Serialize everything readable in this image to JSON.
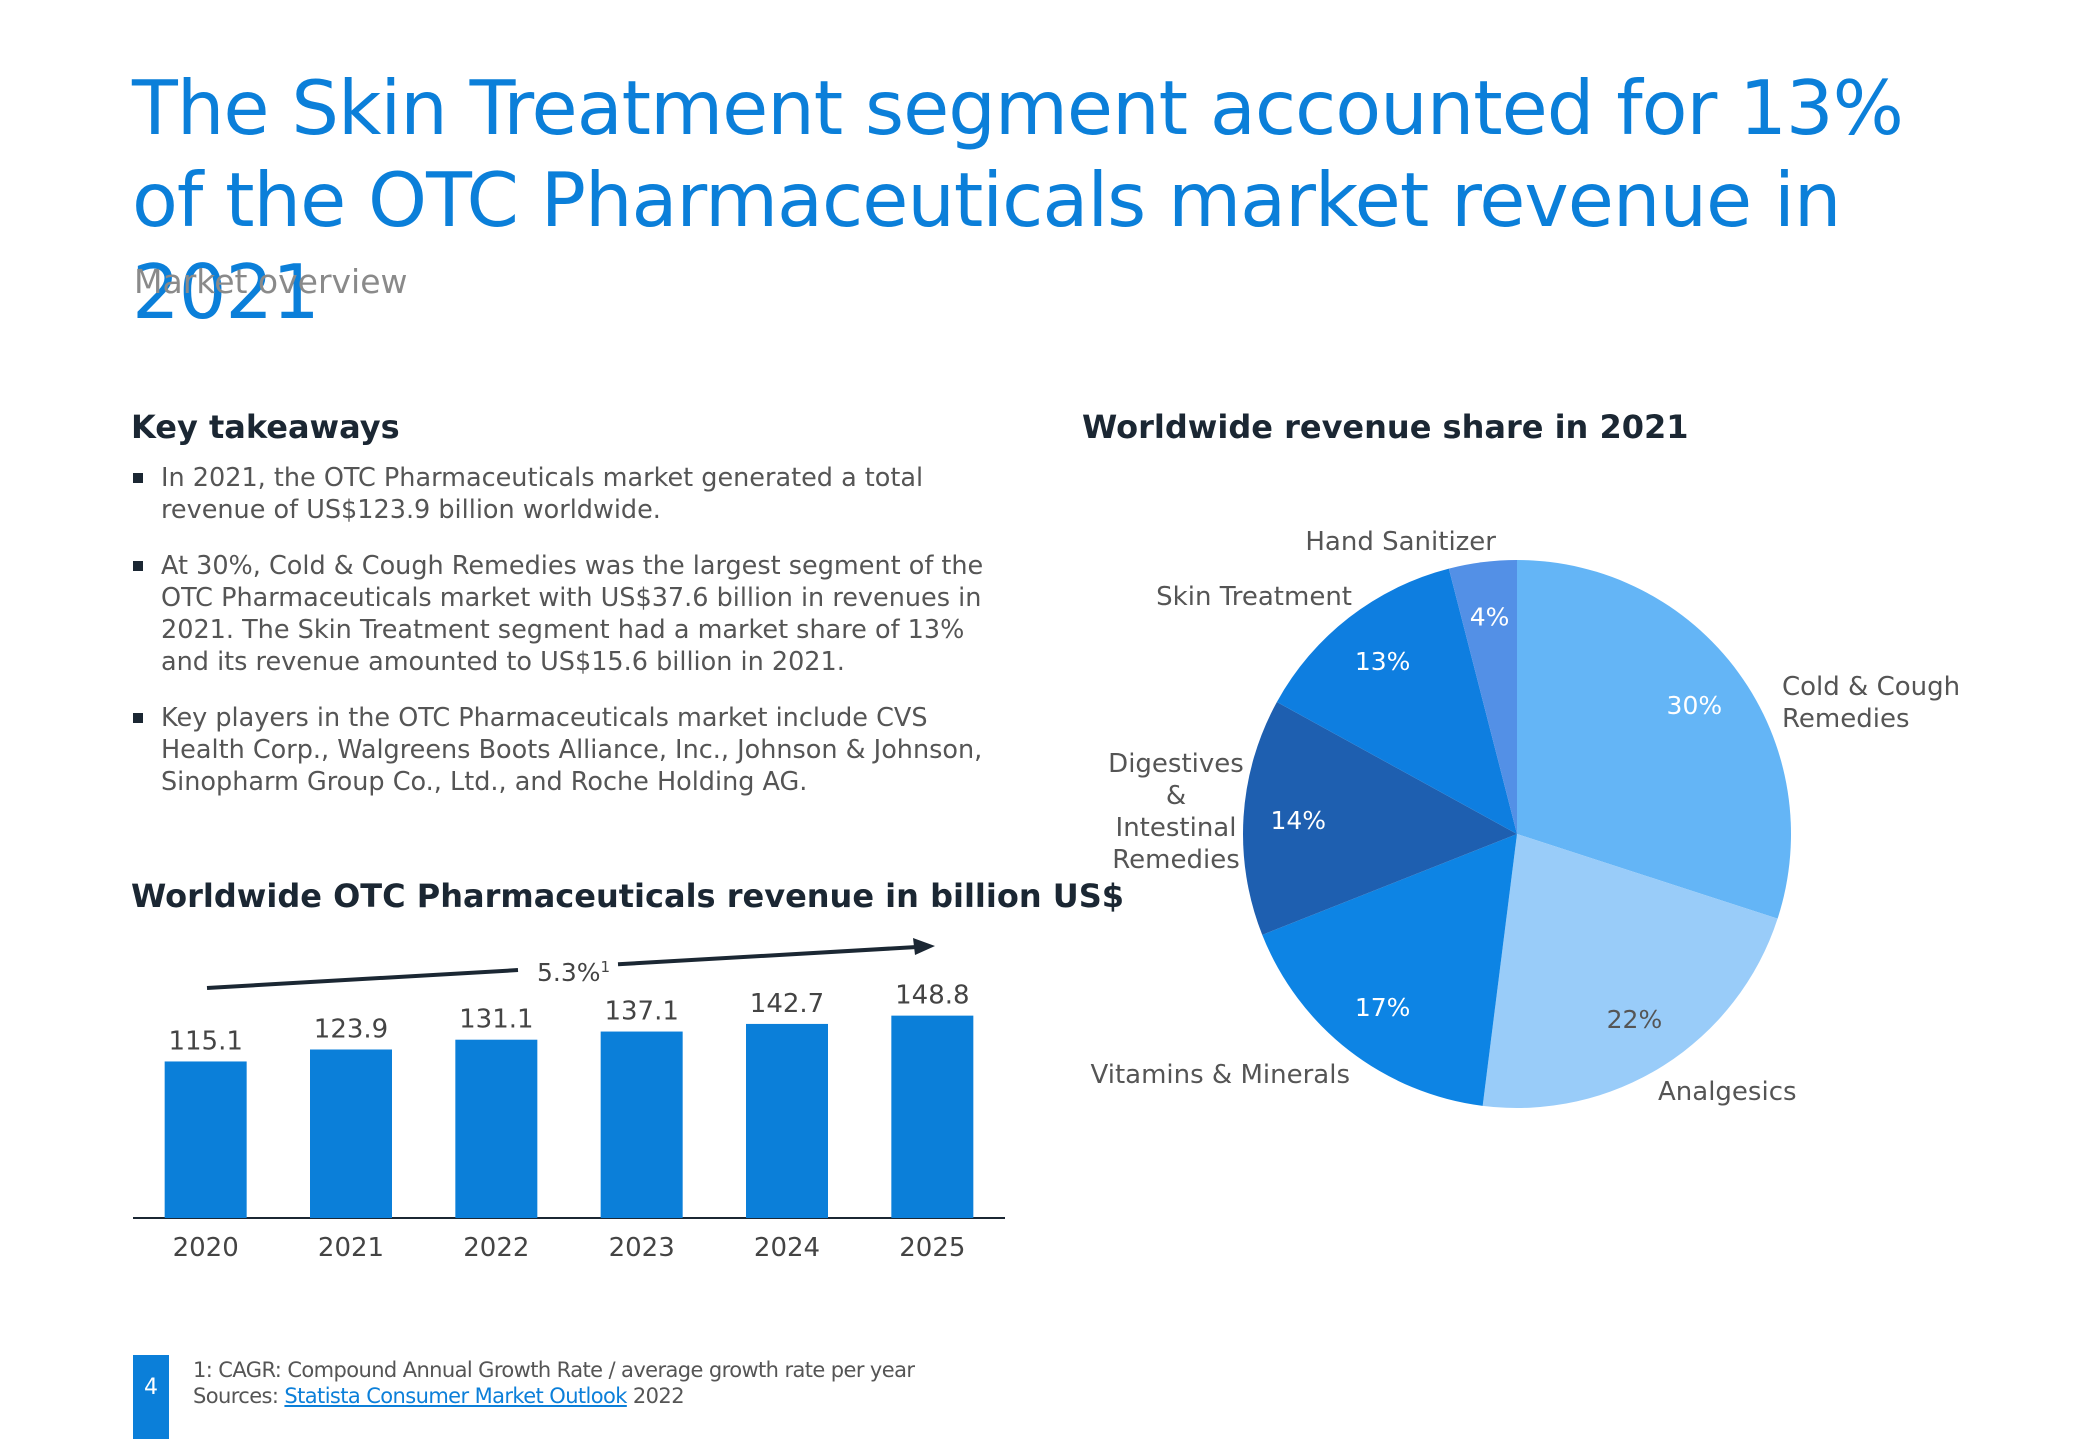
{
  "page": {
    "title": "The Skin Treatment segment accounted for 13% of the OTC Pharmaceuticals market revenue in 2021",
    "subtitle": "Market overview",
    "page_number": "4"
  },
  "takeaways": {
    "heading": "Key takeaways",
    "items": [
      "In 2021, the OTC Pharmaceuticals market generated a total revenue of US$123.9 billion worldwide.",
      "At 30%, Cold & Cough Remedies was the largest segment of the OTC Pharmaceuticals market with US$37.6 billion in revenues in 2021. The Skin Treatment segment had a market share of 13% and its revenue amounted to US$15.6 billion in 2021.",
      "Key players in the OTC Pharmaceuticals market include CVS Health Corp., Walgreens Boots Alliance, Inc., Johnson & Johnson, Sinopharm Group Co., Ltd., and Roche Holding AG."
    ]
  },
  "footer": {
    "note": "1: CAGR: Compound Annual Growth Rate / average growth rate per year",
    "sources_label": "Sources:",
    "source_link": "Statista Consumer Market Outlook",
    "source_year": "2022"
  },
  "colors": {
    "title": "#0b7fd9",
    "bar": "#0b7fd9",
    "arrow": "#1b2733"
  },
  "chart_data": [
    {
      "type": "bar",
      "title": "Worldwide OTC Pharmaceuticals revenue in billion US$",
      "categories": [
        "2020",
        "2021",
        "2022",
        "2023",
        "2024",
        "2025"
      ],
      "values": [
        115.1,
        123.9,
        131.1,
        137.1,
        142.7,
        148.8
      ],
      "data_labels": [
        "115.1",
        "123.9",
        "131.1",
        "137.1",
        "142.7",
        "148.8"
      ],
      "annotation": {
        "text": "5.3%",
        "superscript": "1"
      },
      "xlabel": "",
      "ylabel": "",
      "ylim": [
        0,
        150
      ],
      "grid": false
    },
    {
      "type": "pie",
      "title": "Worldwide revenue share in 2021",
      "labels": [
        "Cold & Cough Remedies",
        "Analgesics",
        "Vitamins & Minerals",
        "Digestives & Intestinal Remedies",
        "Skin Treatment",
        "Hand Sanitizer"
      ],
      "label_lines": [
        [
          "Cold & Cough",
          "Remedies"
        ],
        [
          "Analgesics"
        ],
        [
          "Vitamins & Minerals"
        ],
        [
          "Digestives",
          "&",
          "Intestinal",
          "Remedies"
        ],
        [
          "Skin Treatment"
        ],
        [
          "Hand Sanitizer"
        ]
      ],
      "values": [
        30,
        22,
        17,
        14,
        13,
        4
      ],
      "value_labels": [
        "30%",
        "22%",
        "17%",
        "14%",
        "13%",
        "4%"
      ],
      "colors": [
        "#64b5f6",
        "#99ccf9",
        "#0d84e4",
        "#1e5fb0",
        "#0e7ee0",
        "#5390e6"
      ],
      "label_text_colors": [
        "#ffffff",
        "#555555",
        "#ffffff",
        "#ffffff",
        "#ffffff",
        "#ffffff"
      ]
    }
  ]
}
